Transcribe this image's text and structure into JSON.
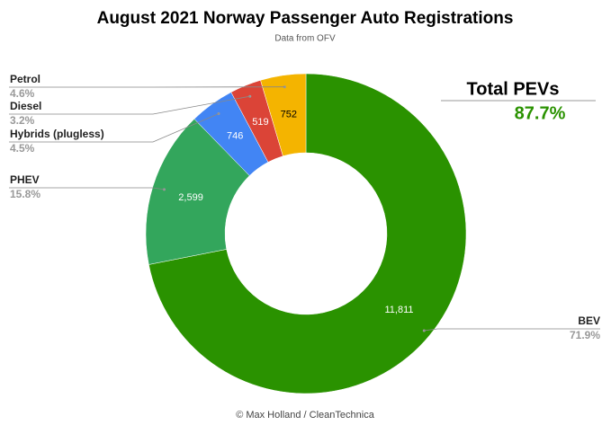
{
  "chart_data": {
    "type": "donut",
    "title": "August 2021 Norway Passenger Auto Registrations",
    "subtitle": "Data from OFV",
    "source": "© Max Holland / CleanTechnica",
    "categories": [
      "BEV",
      "PHEV",
      "Hybrids (plugless)",
      "Diesel",
      "Petrol"
    ],
    "values": [
      11811,
      2599,
      746,
      519,
      752
    ],
    "value_labels": [
      "11,811",
      "2,599",
      "746",
      "519",
      "752"
    ],
    "percent_labels": [
      "71.9%",
      "15.8%",
      "4.5%",
      "3.2%",
      "4.6%"
    ],
    "colors": [
      "#2a9200",
      "#33a65c",
      "#4285f4",
      "#db4437",
      "#f4b400"
    ],
    "annotation_title": "Total PEVs",
    "annotation_value": "87.7%"
  }
}
